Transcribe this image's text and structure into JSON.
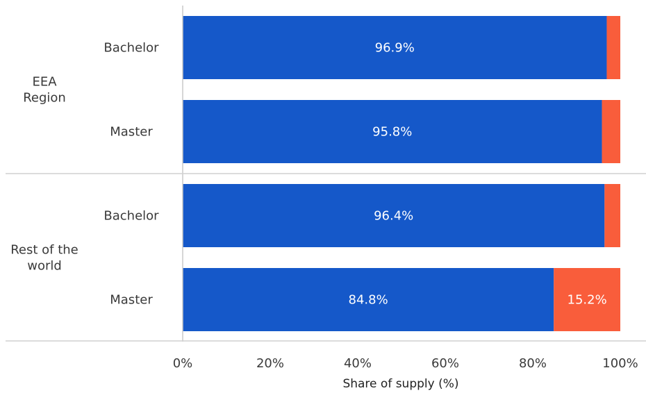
{
  "chart_data": {
    "type": "bar",
    "orientation": "horizontal",
    "stacked": true,
    "xlabel": "Share of supply (%)",
    "xlim": [
      0,
      100
    ],
    "x_ticks": [
      "0%",
      "20%",
      "40%",
      "60%",
      "80%",
      "100%"
    ],
    "groups": [
      {
        "label": "EEA\nRegion",
        "categories": [
          "Bachelor",
          "Master"
        ]
      },
      {
        "label": "Rest of the\nworld",
        "categories": [
          "Bachelor",
          "Master"
        ]
      }
    ],
    "series": [
      {
        "color": "#1558c9",
        "values": [
          96.9,
          95.8,
          96.4,
          84.8
        ],
        "labels": [
          "96.9%",
          "95.8%",
          "96.4%",
          "84.8%"
        ]
      },
      {
        "color": "#f95d3b",
        "values": [
          3.1,
          4.2,
          3.6,
          15.2
        ],
        "labels": [
          "",
          "",
          "",
          "15.2%"
        ]
      }
    ],
    "grid": false,
    "legend": "none"
  }
}
